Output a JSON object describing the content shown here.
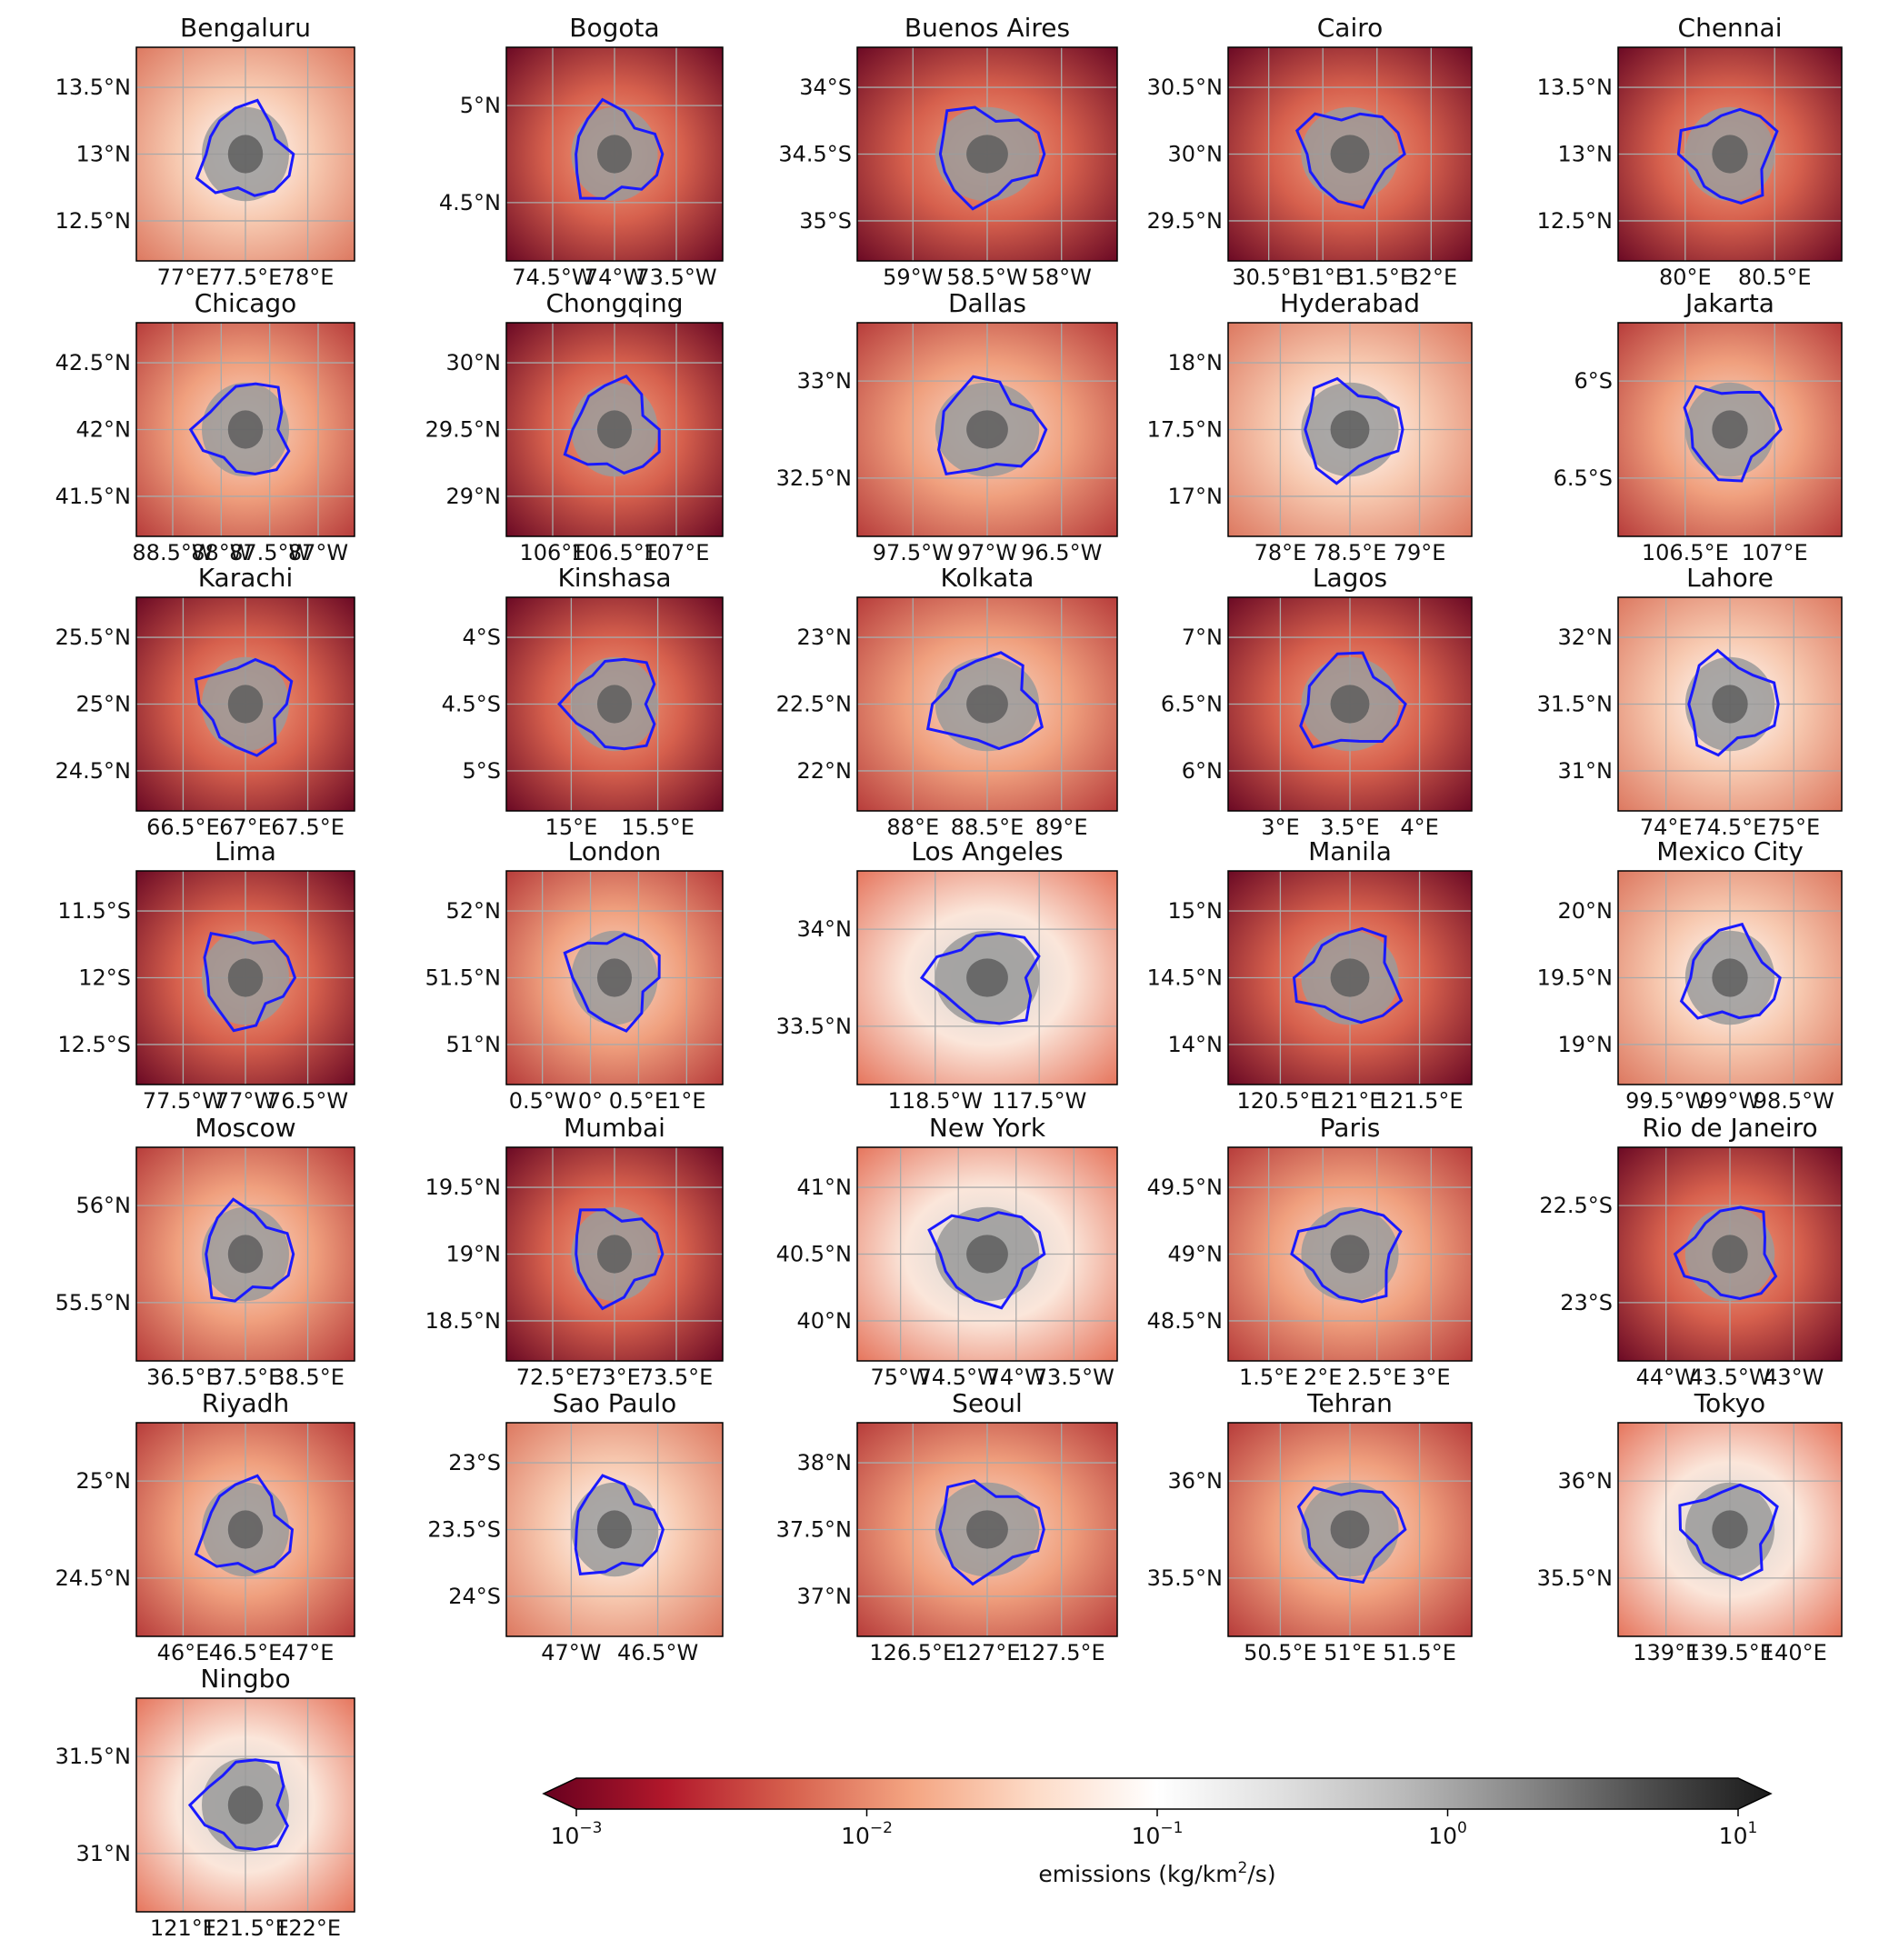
{
  "chart_data": {
    "type": "heatmap",
    "colormap": "RdGy reversed",
    "color_scale": "log",
    "colorbar": {
      "label_prefix": "emissions (kg/km",
      "label_superscript": "2",
      "label_suffix": "/s)",
      "range": [
        0.001,
        10
      ],
      "ticks": [
        {
          "base": "10",
          "exp": "−3"
        },
        {
          "base": "10",
          "exp": "−2"
        },
        {
          "base": "10",
          "exp": "−1"
        },
        {
          "base": "10",
          "exp": "0"
        },
        {
          "base": "10",
          "exp": "1"
        }
      ],
      "extend": "both",
      "colors": [
        "#67001f",
        "#b2182b",
        "#d6604d",
        "#f4a582",
        "#fddbc7",
        "#ffffff",
        "#e0e0e0",
        "#bababa",
        "#878787",
        "#4d4d4d",
        "#1a1a1a"
      ]
    },
    "panels": [
      {
        "title": "Bengaluru",
        "bg": "light",
        "yticks": [
          "13.5°N",
          "13°N",
          "12.5°N"
        ],
        "xticks": [
          "77°E",
          "77.5°E",
          "78°E"
        ]
      },
      {
        "title": "Bogota",
        "bg": "dark",
        "yticks": [
          "5°N",
          "4.5°N"
        ],
        "xticks": [
          "74.5°W",
          "74°W",
          "73.5°W"
        ]
      },
      {
        "title": "Buenos Aires",
        "bg": "dark",
        "yticks": [
          "34°S",
          "34.5°S",
          "35°S"
        ],
        "xticks": [
          "59°W",
          "58.5°W",
          "58°W"
        ]
      },
      {
        "title": "Cairo",
        "bg": "dark",
        "yticks": [
          "30.5°N",
          "30°N",
          "29.5°N"
        ],
        "xticks": [
          "30.5°E",
          "31°E",
          "31.5°E",
          "32°E"
        ]
      },
      {
        "title": "Chennai",
        "bg": "dark",
        "yticks": [
          "13.5°N",
          "13°N",
          "12.5°N"
        ],
        "xticks": [
          "80°E",
          "80.5°E"
        ]
      },
      {
        "title": "Chicago",
        "bg": "mid",
        "yticks": [
          "42.5°N",
          "42°N",
          "41.5°N"
        ],
        "xticks": [
          "88.5°W",
          "88°W",
          "87.5°W",
          "87°W"
        ]
      },
      {
        "title": "Chongqing",
        "bg": "dark",
        "yticks": [
          "30°N",
          "29.5°N",
          "29°N"
        ],
        "xticks": [
          "106°E",
          "106.5°E",
          "107°E"
        ]
      },
      {
        "title": "Dallas",
        "bg": "mid",
        "yticks": [
          "33°N",
          "32.5°N"
        ],
        "xticks": [
          "97.5°W",
          "97°W",
          "96.5°W"
        ]
      },
      {
        "title": "Hyderabad",
        "bg": "light",
        "yticks": [
          "18°N",
          "17.5°N",
          "17°N"
        ],
        "xticks": [
          "78°E",
          "78.5°E",
          "79°E"
        ]
      },
      {
        "title": "Jakarta",
        "bg": "mid",
        "yticks": [
          "6°S",
          "6.5°S"
        ],
        "xticks": [
          "106.5°E",
          "107°E"
        ]
      },
      {
        "title": "Karachi",
        "bg": "dark",
        "yticks": [
          "25.5°N",
          "25°N",
          "24.5°N"
        ],
        "xticks": [
          "66.5°E",
          "67°E",
          "67.5°E"
        ]
      },
      {
        "title": "Kinshasa",
        "bg": "dark",
        "yticks": [
          "4°S",
          "4.5°S",
          "5°S"
        ],
        "xticks": [
          "15°E",
          "15.5°E"
        ]
      },
      {
        "title": "Kolkata",
        "bg": "mid",
        "yticks": [
          "23°N",
          "22.5°N",
          "22°N"
        ],
        "xticks": [
          "88°E",
          "88.5°E",
          "89°E"
        ]
      },
      {
        "title": "Lagos",
        "bg": "dark",
        "yticks": [
          "7°N",
          "6.5°N",
          "6°N"
        ],
        "xticks": [
          "3°E",
          "3.5°E",
          "4°E"
        ]
      },
      {
        "title": "Lahore",
        "bg": "light",
        "yticks": [
          "32°N",
          "31.5°N",
          "31°N"
        ],
        "xticks": [
          "74°E",
          "74.5°E",
          "75°E"
        ]
      },
      {
        "title": "Lima",
        "bg": "dark",
        "yticks": [
          "11.5°S",
          "12°S",
          "12.5°S"
        ],
        "xticks": [
          "77.5°W",
          "77°W",
          "76.5°W"
        ]
      },
      {
        "title": "London",
        "bg": "mid",
        "yticks": [
          "52°N",
          "51.5°N",
          "51°N"
        ],
        "xticks": [
          "0.5°W",
          "0°",
          "0.5°E",
          "1°E"
        ]
      },
      {
        "title": "Los Angeles",
        "bg": "grey",
        "yticks": [
          "34°N",
          "33.5°N"
        ],
        "xticks": [
          "118.5°W",
          "117.5°W"
        ]
      },
      {
        "title": "Manila",
        "bg": "dark",
        "yticks": [
          "15°N",
          "14.5°N",
          "14°N"
        ],
        "xticks": [
          "120.5°E",
          "121°E",
          "121.5°E"
        ]
      },
      {
        "title": "Mexico City",
        "bg": "light",
        "yticks": [
          "20°N",
          "19.5°N",
          "19°N"
        ],
        "xticks": [
          "99.5°W",
          "99°W",
          "98.5°W"
        ]
      },
      {
        "title": "Moscow",
        "bg": "mid",
        "yticks": [
          "56°N",
          "55.5°N"
        ],
        "xticks": [
          "36.5°E",
          "37.5°E",
          "38.5°E"
        ]
      },
      {
        "title": "Mumbai",
        "bg": "dark",
        "yticks": [
          "19.5°N",
          "19°N",
          "18.5°N"
        ],
        "xticks": [
          "72.5°E",
          "73°E",
          "73.5°E"
        ]
      },
      {
        "title": "New York",
        "bg": "grey",
        "yticks": [
          "41°N",
          "40.5°N",
          "40°N"
        ],
        "xticks": [
          "75°W",
          "74.5°W",
          "74°W",
          "73.5°W"
        ]
      },
      {
        "title": "Paris",
        "bg": "mid",
        "yticks": [
          "49.5°N",
          "49°N",
          "48.5°N"
        ],
        "xticks": [
          "1.5°E",
          "2°E",
          "2.5°E",
          "3°E"
        ]
      },
      {
        "title": "Rio de Janeiro",
        "bg": "dark",
        "yticks": [
          "22.5°S",
          "23°S"
        ],
        "xticks": [
          "44°W",
          "43.5°W",
          "43°W"
        ]
      },
      {
        "title": "Riyadh",
        "bg": "mid",
        "yticks": [
          "25°N",
          "24.5°N"
        ],
        "xticks": [
          "46°E",
          "46.5°E",
          "47°E"
        ]
      },
      {
        "title": "Sao Paulo",
        "bg": "light",
        "yticks": [
          "23°S",
          "23.5°S",
          "24°S"
        ],
        "xticks": [
          "47°W",
          "46.5°W"
        ]
      },
      {
        "title": "Seoul",
        "bg": "mid",
        "yticks": [
          "38°N",
          "37.5°N",
          "37°N"
        ],
        "xticks": [
          "126.5°E",
          "127°E",
          "127.5°E"
        ]
      },
      {
        "title": "Tehran",
        "bg": "mid",
        "yticks": [
          "36°N",
          "35.5°N"
        ],
        "xticks": [
          "50.5°E",
          "51°E",
          "51.5°E"
        ]
      },
      {
        "title": "Tokyo",
        "bg": "grey",
        "yticks": [
          "36°N",
          "35.5°N"
        ],
        "xticks": [
          "139°E",
          "139.5°E",
          "140°E"
        ]
      },
      {
        "title": "Ningbo",
        "bg": "grey",
        "yticks": [
          "31.5°N",
          "31°N"
        ],
        "xticks": [
          "121°E",
          "121.5°E",
          "122°E"
        ]
      }
    ]
  }
}
